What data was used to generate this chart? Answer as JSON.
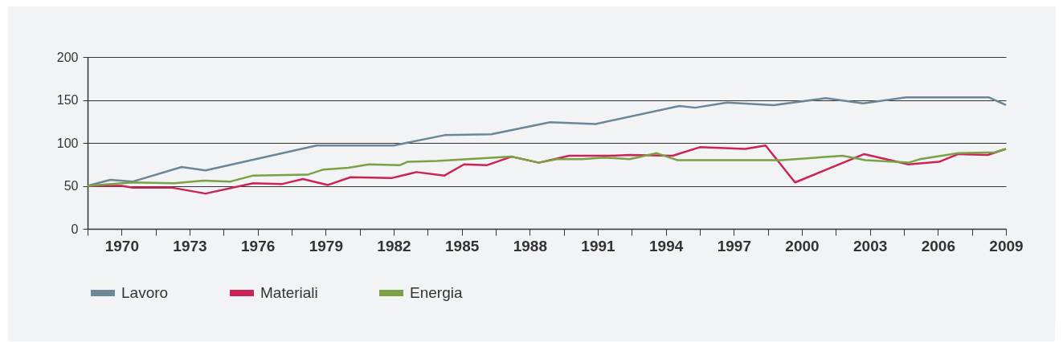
{
  "chart_data": {
    "type": "line",
    "xlim": [
      1968.5,
      2009
    ],
    "xticks": [
      {
        "value": 1968.5,
        "label": null
      },
      1970,
      {
        "value": 1971.5,
        "label": null
      },
      1973,
      {
        "value": 1974.5,
        "label": null
      },
      1976,
      {
        "value": 1977.5,
        "label": null
      },
      1979,
      {
        "value": 1980.5,
        "label": null
      },
      1982,
      {
        "value": 1983.5,
        "label": null
      },
      1985,
      {
        "value": 1986.5,
        "label": null
      },
      1988,
      {
        "value": 1989.5,
        "label": null
      },
      1991,
      {
        "value": 1992.5,
        "label": null
      },
      1994,
      {
        "value": 1995.5,
        "label": null
      },
      1997,
      {
        "value": 1998.5,
        "label": null
      },
      2000,
      {
        "value": 2001.5,
        "label": null
      },
      2003,
      {
        "value": 2004.5,
        "label": null
      },
      2006,
      {
        "value": 2007.5,
        "label": null
      },
      2009
    ],
    "ylim": [
      0,
      200
    ],
    "yticks": [
      0,
      50,
      100,
      150,
      200
    ],
    "grid": "y",
    "legend": "bottom",
    "marker": "none",
    "line_style": "solid",
    "series": [
      {
        "name": "Lavoro",
        "color": "#6a8797",
        "x": [
          1968.5,
          1969.5,
          1970.5,
          1972.65,
          1973.7,
          1978.6,
          1982.0,
          1984.24,
          1986.3,
          1988.9,
          1990.9,
          1994.6,
          1995.3,
          1996.7,
          1998.75,
          2001.05,
          2002.7,
          2004.6,
          2008.25,
          2009
        ],
        "values": [
          50,
          57,
          55,
          72,
          68,
          97,
          97,
          109,
          110,
          124,
          122,
          143,
          141,
          147,
          144,
          152,
          146,
          153,
          153,
          144
        ]
      },
      {
        "name": "Materiali",
        "color": "#cc2357",
        "x": [
          1968.5,
          1970,
          1970.5,
          1972.2,
          1973.7,
          1975.8,
          1977.05,
          1978.0,
          1979.1,
          1980.1,
          1981.9,
          1983.0,
          1984.24,
          1985.1,
          1986.1,
          1987.2,
          1988.4,
          1989.74,
          1991.5,
          1992.4,
          1994.3,
          1995.5,
          1997.5,
          1998.4,
          1999.7,
          2002.75,
          2004.7,
          2006.05,
          2006.9,
          2008.2,
          2009
        ],
        "values": [
          50,
          50,
          48,
          48,
          41,
          53,
          52,
          58,
          51,
          60,
          59,
          66,
          62,
          75,
          74,
          84,
          77,
          85,
          85,
          86,
          85,
          95,
          93,
          97,
          54,
          87,
          75,
          78,
          87,
          86,
          93
        ]
      },
      {
        "name": "Energia",
        "color": "#7aa145",
        "x": [
          1968.5,
          1970.5,
          1972.33,
          1973.6,
          1974.8,
          1975.8,
          1978.2,
          1978.9,
          1980.0,
          1980.9,
          1982.26,
          1982.6,
          1983.9,
          1987.2,
          1988.4,
          1989.2,
          1990.3,
          1991.3,
          1992.4,
          1993.6,
          1994.5,
          1999.1,
          2001.8,
          2002.8,
          2004.7,
          2005.2,
          2006.9,
          2008.5,
          2009
        ],
        "values": [
          50,
          54,
          53,
          56,
          55,
          62,
          63,
          69,
          71,
          75,
          74,
          78,
          79,
          84,
          77,
          81,
          81,
          83,
          81,
          88,
          80,
          80,
          85,
          80,
          77,
          81,
          88,
          89,
          93
        ]
      }
    ]
  }
}
